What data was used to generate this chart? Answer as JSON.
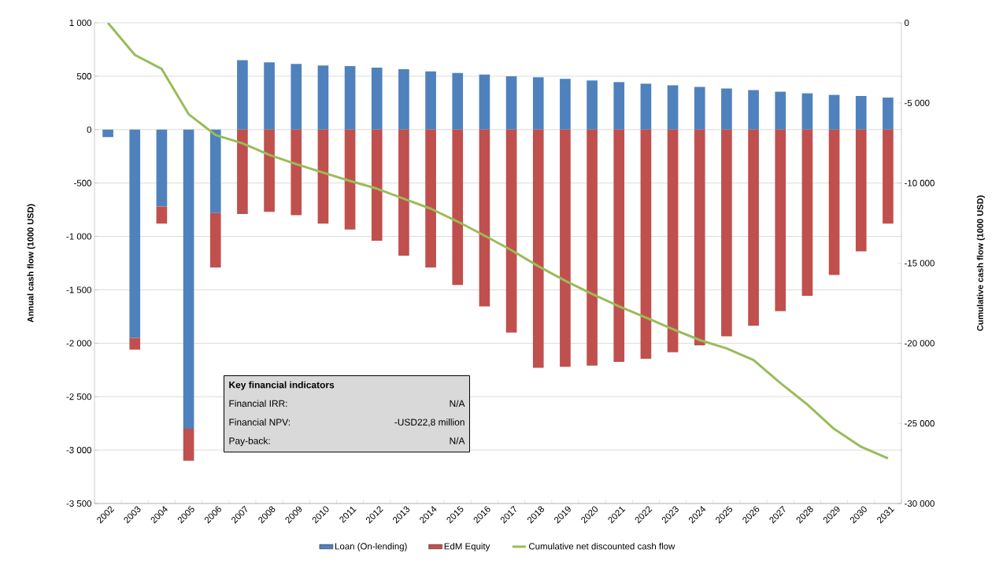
{
  "chart_data": {
    "type": "bar",
    "stacked": true,
    "categories": [
      "2002",
      "2003",
      "2004",
      "2005",
      "2006",
      "2007",
      "2008",
      "2009",
      "2010",
      "2011",
      "2012",
      "2013",
      "2014",
      "2015",
      "2016",
      "2017",
      "2018",
      "2019",
      "2020",
      "2021",
      "2022",
      "2023",
      "2024",
      "2025",
      "2026",
      "2027",
      "2028",
      "2029",
      "2030",
      "2031"
    ],
    "series": [
      {
        "name": "Loan (On-lending)",
        "color": "#4f81bd",
        "values": [
          -70,
          -1950,
          -720,
          -2800,
          -780,
          650,
          630,
          615,
          600,
          595,
          580,
          565,
          545,
          530,
          515,
          500,
          490,
          475,
          460,
          445,
          430,
          415,
          400,
          385,
          370,
          355,
          340,
          325,
          315,
          300
        ]
      },
      {
        "name": "EdM Equity",
        "color": "#c0504d",
        "values": [
          0,
          -110,
          -160,
          -300,
          -510,
          -790,
          -770,
          -800,
          -880,
          -935,
          -1040,
          -1180,
          -1290,
          -1455,
          -1655,
          -1900,
          -2230,
          -2220,
          -2210,
          -2175,
          -2145,
          -2085,
          -2020,
          -1935,
          -1835,
          -1700,
          -1555,
          -1360,
          -1140,
          -880
        ]
      },
      {
        "name": "Cumulative net discounted cash flow",
        "color": "#9bbb59",
        "type": "line",
        "axis": "y2",
        "values": [
          0,
          -2000,
          -2880,
          -5700,
          -7000,
          -7520,
          -8240,
          -8820,
          -9350,
          -9870,
          -10350,
          -10980,
          -11600,
          -12400,
          -13280,
          -14190,
          -15190,
          -16100,
          -16920,
          -17690,
          -18400,
          -19120,
          -19800,
          -20320,
          -21040,
          -22480,
          -23820,
          -25350,
          -26460,
          -27180
        ]
      }
    ],
    "ylabel": "Annual cash flow (1000 USD)",
    "y2label": "Cumulative cash flow (1000 USD)",
    "ylim": [
      -3500,
      1000
    ],
    "yticks": [
      {
        "value": 1000,
        "label": "1 000"
      },
      500,
      0,
      -500,
      {
        "value": -1000,
        "label": "-1 000"
      },
      {
        "value": -1500,
        "label": "-1 500"
      },
      {
        "value": -2000,
        "label": "-2 000"
      },
      {
        "value": -2500,
        "label": "-2 500"
      },
      {
        "value": -3000,
        "label": "-3 000"
      },
      {
        "value": -3500,
        "label": "-3 500"
      }
    ],
    "y2lim": [
      -30000,
      0
    ],
    "y2ticks": [
      0,
      {
        "value": -5000,
        "label": "-5 000"
      },
      {
        "value": -10000,
        "label": "-10 000"
      },
      {
        "value": -15000,
        "label": "-15 000"
      },
      {
        "value": -20000,
        "label": "-20 000"
      },
      {
        "value": -25000,
        "label": "-25 000"
      },
      {
        "value": -30000,
        "label": "-30 000"
      }
    ],
    "grid": "y",
    "legend": "bottom",
    "annotations": [
      "Key financial indicators",
      "Financial IRR:",
      "N/A",
      "Financial NPV:",
      "-USD22,8 million",
      "Pay-back:",
      "N/A"
    ]
  }
}
